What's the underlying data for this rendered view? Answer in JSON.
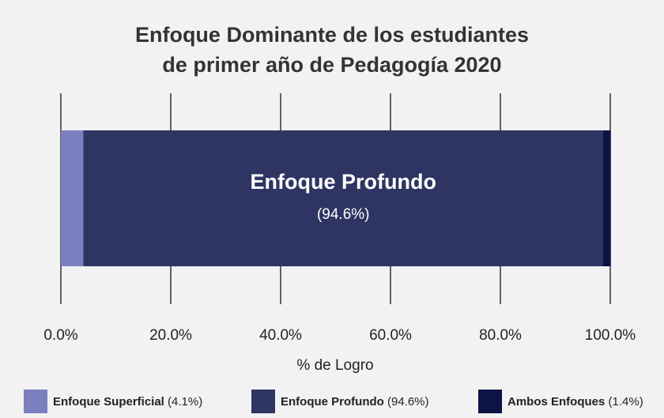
{
  "chart_data": {
    "type": "stacked-bar-horizontal",
    "title": [
      "Enfoque Dominante de los estudiantes",
      "de primer año de Pedagogía 2020"
    ],
    "x_label": "% de Logro",
    "series": [
      {
        "name": "Enfoque Superficial",
        "color": "#7b7fbf",
        "values": [
          4.1
        ],
        "value_labels": [
          "(4.1%)"
        ]
      },
      {
        "name": "Enfoque Profundo",
        "color": "#2e3563",
        "values": [
          94.6
        ],
        "value_labels": [
          "(94.6%)"
        ]
      },
      {
        "name": "Ambos Enfoques",
        "color": "#0d1345",
        "values": [
          1.4
        ],
        "value_labels": [
          "(1.4%)"
        ]
      }
    ],
    "xlim": [
      0,
      100
    ],
    "xticks": [
      {
        "value": 0,
        "label": "0.0%"
      },
      {
        "value": 20,
        "label": "20.0%"
      },
      {
        "value": 40,
        "label": "40.0%"
      },
      {
        "value": 60,
        "label": "60.0%"
      },
      {
        "value": 80,
        "label": "80.0%"
      },
      {
        "value": 100,
        "label": "100.0%"
      }
    ],
    "grid": true,
    "legend": "bottom"
  }
}
